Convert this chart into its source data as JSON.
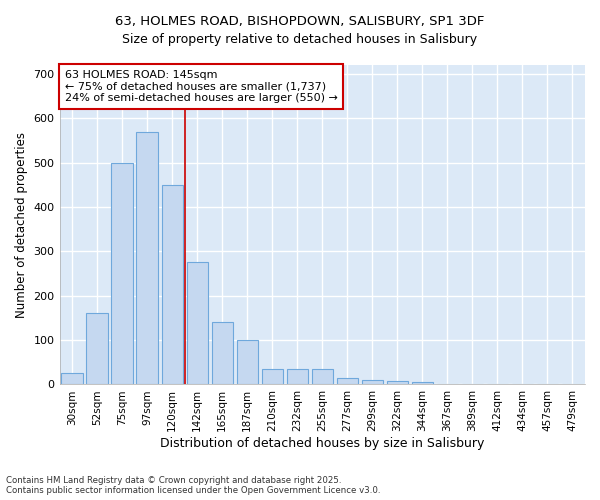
{
  "title_line1": "63, HOLMES ROAD, BISHOPDOWN, SALISBURY, SP1 3DF",
  "title_line2": "Size of property relative to detached houses in Salisbury",
  "xlabel": "Distribution of detached houses by size in Salisbury",
  "ylabel": "Number of detached properties",
  "categories": [
    "30sqm",
    "52sqm",
    "75sqm",
    "97sqm",
    "120sqm",
    "142sqm",
    "165sqm",
    "187sqm",
    "210sqm",
    "232sqm",
    "255sqm",
    "277sqm",
    "299sqm",
    "322sqm",
    "344sqm",
    "367sqm",
    "389sqm",
    "412sqm",
    "434sqm",
    "457sqm",
    "479sqm"
  ],
  "values": [
    25,
    160,
    500,
    570,
    450,
    275,
    140,
    100,
    35,
    35,
    35,
    15,
    10,
    8,
    5,
    0,
    0,
    0,
    0,
    0,
    0
  ],
  "bar_color": "#c5d8f0",
  "bar_edge_color": "#6fa8dc",
  "annotation_text": "63 HOLMES ROAD: 145sqm\n← 75% of detached houses are smaller (1,737)\n24% of semi-detached houses are larger (550) →",
  "annotation_box_color": "#ffffff",
  "annotation_box_edge_color": "#cc0000",
  "vline_color": "#cc0000",
  "ylim": [
    0,
    720
  ],
  "yticks": [
    0,
    100,
    200,
    300,
    400,
    500,
    600,
    700
  ],
  "footer_text": "Contains HM Land Registry data © Crown copyright and database right 2025.\nContains public sector information licensed under the Open Government Licence v3.0.",
  "bg_color": "#ffffff",
  "plot_bg_color": "#dce9f7",
  "grid_color": "#ffffff",
  "vline_x_idx": 5
}
